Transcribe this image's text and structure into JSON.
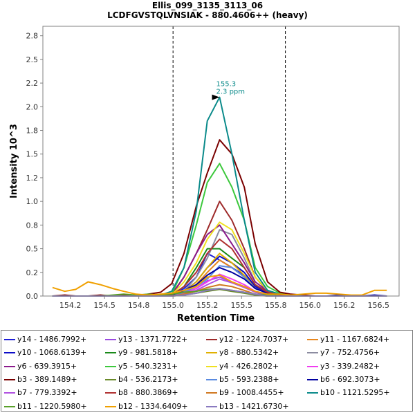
{
  "chart_data": {
    "type": "line",
    "title": "Ellis_099_3135_3113_06",
    "subtitle": "LCDFGVSTQLVNSIAK - 880.4606++ (heavy)",
    "xlabel": "Retention Time",
    "ylabel": "Intensity 10^3",
    "xlim": [
      154.0,
      156.6
    ],
    "ylim": [
      0,
      2.85
    ],
    "x_ticks": [
      "154.2",
      "154.5",
      "154.8",
      "155.0",
      "155.2",
      "155.5",
      "155.8",
      "156.0",
      "156.2",
      "156.5"
    ],
    "x_tick_values": [
      154.2,
      154.45,
      154.7,
      154.95,
      155.2,
      155.45,
      155.7,
      155.95,
      156.2,
      156.45
    ],
    "y_ticks": [
      "0.0",
      "0.2",
      "0.5",
      "0.8",
      "1.0",
      "1.2",
      "1.5",
      "1.8",
      "2.0",
      "2.2",
      "2.5",
      "2.8"
    ],
    "y_tick_values": [
      0.0,
      0.25,
      0.5,
      0.75,
      1.0,
      1.25,
      1.5,
      1.75,
      2.0,
      2.25,
      2.5,
      2.75
    ],
    "boundaries": [
      154.95,
      155.77
    ],
    "peak_annotation": {
      "x": 155.3,
      "y": 2.1,
      "line1": "155.3",
      "line2": "2.3 ppm"
    },
    "x": [
      154.07,
      154.16,
      154.24,
      154.33,
      154.42,
      154.51,
      154.59,
      154.68,
      154.77,
      154.86,
      154.94,
      155.03,
      155.12,
      155.2,
      155.29,
      155.38,
      155.47,
      155.55,
      155.64,
      155.73,
      155.81,
      155.9,
      155.99,
      156.07,
      156.16,
      156.25,
      156.33,
      156.42,
      156.51
    ],
    "series": [
      {
        "name": "y14 - 1486.7992+",
        "color": "#1f1fd6",
        "values": [
          0,
          0,
          0,
          0,
          0,
          0,
          0,
          0,
          0,
          0,
          0.01,
          0.08,
          0.2,
          0.45,
          0.38,
          0.3,
          0.22,
          0.1,
          0.05,
          0.02,
          0.01,
          0,
          0,
          0,
          0,
          0,
          0,
          0,
          0
        ]
      },
      {
        "name": "y13 - 1371.7722+",
        "color": "#9a4ae0",
        "values": [
          0,
          0,
          0,
          0,
          0,
          0,
          0,
          0,
          0,
          0,
          0,
          0.03,
          0.08,
          0.16,
          0.2,
          0.15,
          0.1,
          0.04,
          0.02,
          0.01,
          0,
          0,
          0,
          0,
          0,
          0,
          0,
          0,
          0
        ]
      },
      {
        "name": "y12 - 1224.7037+",
        "color": "#9e2a2a",
        "values": [
          0,
          0,
          0,
          0,
          0,
          0,
          0,
          0,
          0,
          0,
          0.02,
          0.2,
          0.45,
          0.7,
          1.0,
          0.8,
          0.5,
          0.2,
          0.05,
          0.02,
          0,
          0,
          0,
          0,
          0,
          0,
          0,
          0,
          0
        ]
      },
      {
        "name": "y11 - 1167.6824+",
        "color": "#e8871e",
        "values": [
          0,
          0,
          0,
          0,
          0,
          0,
          0,
          0,
          0,
          0,
          0,
          0.04,
          0.12,
          0.25,
          0.38,
          0.3,
          0.2,
          0.08,
          0.03,
          0.01,
          0,
          0,
          0,
          0,
          0,
          0,
          0,
          0,
          0
        ]
      },
      {
        "name": "y10 - 1068.6139+",
        "color": "#0c0cc8",
        "values": [
          0,
          0,
          0,
          0,
          0,
          0,
          0,
          0,
          0,
          0,
          0,
          0.05,
          0.15,
          0.3,
          0.42,
          0.35,
          0.25,
          0.1,
          0.04,
          0.01,
          0,
          0,
          0,
          0,
          0,
          0,
          0,
          0,
          0
        ]
      },
      {
        "name": "y9 - 981.5818+",
        "color": "#1a8a1a",
        "values": [
          0,
          0,
          0,
          0,
          0,
          0,
          0,
          0,
          0,
          0,
          0.01,
          0.1,
          0.3,
          0.5,
          0.5,
          0.4,
          0.3,
          0.12,
          0.04,
          0.01,
          0,
          0,
          0,
          0,
          0,
          0,
          0,
          0,
          0
        ]
      },
      {
        "name": "y8 - 880.5342+",
        "color": "#e0b000",
        "values": [
          0,
          0,
          0,
          0,
          0,
          0,
          0,
          0,
          0,
          0,
          0,
          0.04,
          0.15,
          0.3,
          0.45,
          0.35,
          0.22,
          0.08,
          0.03,
          0,
          0,
          0,
          0,
          0,
          0,
          0,
          0,
          0,
          0
        ]
      },
      {
        "name": "y7 - 752.4756+",
        "color": "#8c8ca0",
        "values": [
          0,
          0,
          0,
          0,
          0,
          0,
          0,
          0,
          0,
          0,
          0,
          0.05,
          0.2,
          0.4,
          0.7,
          0.65,
          0.4,
          0.15,
          0.05,
          0.02,
          0,
          0,
          0,
          0,
          0,
          0,
          0,
          0,
          0
        ]
      },
      {
        "name": "y6 - 639.3915+",
        "color": "#8b1a8b",
        "values": [
          0,
          0,
          0,
          0,
          0,
          0,
          0,
          0,
          0,
          0,
          0.01,
          0.2,
          0.45,
          0.65,
          0.75,
          0.55,
          0.35,
          0.15,
          0.05,
          0.02,
          0,
          0,
          0,
          0,
          0,
          0,
          0,
          0,
          0
        ]
      },
      {
        "name": "y5 - 540.3231+",
        "color": "#3cc83c",
        "values": [
          0,
          0,
          0,
          0,
          0,
          0,
          0,
          0,
          0,
          0,
          0.02,
          0.3,
          0.75,
          1.2,
          1.4,
          1.15,
          0.8,
          0.3,
          0.1,
          0.03,
          0,
          0,
          0,
          0,
          0,
          0,
          0,
          0,
          0
        ]
      },
      {
        "name": "y4 - 426.2802+",
        "color": "#f0e020",
        "values": [
          0,
          0,
          0,
          0,
          0,
          0,
          0,
          0,
          0,
          0,
          0.01,
          0.15,
          0.35,
          0.6,
          0.78,
          0.7,
          0.45,
          0.2,
          0.06,
          0.02,
          0,
          0,
          0,
          0,
          0,
          0,
          0,
          0,
          0
        ]
      },
      {
        "name": "y3 - 339.2482+",
        "color": "#f03cf0",
        "values": [
          0,
          0,
          0,
          0,
          0,
          0,
          0,
          0,
          0,
          0,
          0,
          0.03,
          0.08,
          0.15,
          0.23,
          0.18,
          0.12,
          0.05,
          0.02,
          0,
          0,
          0,
          0,
          0,
          0,
          0,
          0,
          0,
          0
        ]
      },
      {
        "name": "b3 - 389.1489+",
        "color": "#7a0000",
        "values": [
          0,
          0.01,
          0,
          0,
          0.01,
          0,
          0.01,
          0,
          0.02,
          0.04,
          0.13,
          0.45,
          0.95,
          1.3,
          1.65,
          1.5,
          1.15,
          0.55,
          0.15,
          0.04,
          0.02,
          0.01,
          0,
          0,
          0,
          0,
          0,
          0,
          0
        ]
      },
      {
        "name": "b4 - 536.2173+",
        "color": "#6a8a2a",
        "values": [
          0,
          0,
          0,
          0,
          0,
          0,
          0,
          0,
          0,
          0,
          0,
          0.01,
          0.03,
          0.05,
          0.07,
          0.05,
          0.03,
          0.01,
          0,
          0,
          0,
          0,
          0,
          0,
          0,
          0,
          0,
          0,
          0
        ]
      },
      {
        "name": "b5 - 593.2388+",
        "color": "#5a8ae0",
        "values": [
          0,
          0,
          0,
          0,
          0,
          0,
          0,
          0,
          0,
          0,
          0,
          0.04,
          0.1,
          0.18,
          0.32,
          0.3,
          0.2,
          0.08,
          0.03,
          0,
          0,
          0,
          0,
          0,
          0,
          0,
          0,
          0,
          0
        ]
      },
      {
        "name": "b6 - 692.3073+",
        "color": "#0000a0",
        "values": [
          0,
          0,
          0,
          0,
          0,
          0,
          0,
          0,
          0,
          0,
          0.01,
          0.06,
          0.12,
          0.22,
          0.3,
          0.25,
          0.18,
          0.08,
          0.03,
          0.01,
          0,
          0,
          0,
          0,
          0.01,
          0,
          0,
          0.01,
          0
        ]
      },
      {
        "name": "b7 - 779.3392+",
        "color": "#b050e0",
        "values": [
          0,
          0,
          0,
          0,
          0,
          0,
          0,
          0,
          0,
          0,
          0,
          0.02,
          0.06,
          0.12,
          0.18,
          0.14,
          0.09,
          0.04,
          0.01,
          0,
          0,
          0,
          0,
          0,
          0,
          0,
          0,
          0,
          0
        ]
      },
      {
        "name": "b8 - 880.3869+",
        "color": "#b03030",
        "values": [
          0,
          0,
          0,
          0,
          0,
          0,
          0,
          0,
          0,
          0,
          0.01,
          0.1,
          0.25,
          0.45,
          0.6,
          0.5,
          0.3,
          0.12,
          0.04,
          0.01,
          0,
          0,
          0,
          0,
          0,
          0,
          0,
          0,
          0
        ]
      },
      {
        "name": "b9 - 1008.4455+",
        "color": "#d07820",
        "values": [
          0,
          0,
          0,
          0,
          0,
          0,
          0,
          0,
          0,
          0,
          0,
          0.02,
          0.05,
          0.09,
          0.12,
          0.1,
          0.06,
          0.02,
          0.01,
          0,
          0,
          0,
          0,
          0,
          0,
          0,
          0,
          0,
          0
        ]
      },
      {
        "name": "b10 - 1121.5295+",
        "color": "#0a8a8a",
        "values": [
          0,
          0,
          0,
          0,
          0,
          0,
          0,
          0,
          0,
          0.01,
          0.05,
          0.3,
          0.9,
          1.85,
          2.1,
          1.5,
          0.8,
          0.25,
          0.06,
          0.02,
          0.01,
          0,
          0,
          0,
          0,
          0,
          0,
          0,
          0
        ]
      },
      {
        "name": "b11 - 1220.5980+",
        "color": "#5aa02a",
        "values": [
          0,
          0,
          0,
          0,
          0,
          0.01,
          0.02,
          0.01,
          0.02,
          0.01,
          0.02,
          0.04,
          0.05,
          0.07,
          0.08,
          0.06,
          0.04,
          0.02,
          0.01,
          0,
          0,
          0,
          0,
          0,
          0,
          0,
          0,
          0,
          0
        ]
      },
      {
        "name": "b12 - 1334.6409+",
        "color": "#f0a000",
        "values": [
          0.09,
          0.05,
          0.07,
          0.15,
          0.12,
          0.08,
          0.05,
          0.02,
          0.01,
          0.02,
          0.03,
          0.06,
          0.1,
          0.2,
          0.22,
          0.15,
          0.1,
          0.05,
          0.02,
          0.02,
          0.01,
          0.02,
          0.03,
          0.03,
          0.02,
          0.01,
          0.01,
          0.06,
          0.06
        ]
      },
      {
        "name": "b13 - 1421.6730+",
        "color": "#8a7ac0",
        "values": [
          0,
          0,
          0,
          0,
          0,
          0,
          0,
          0,
          0,
          0,
          0,
          0.01,
          0.03,
          0.06,
          0.08,
          0.06,
          0.04,
          0.02,
          0,
          0,
          0,
          0,
          0,
          0,
          0,
          0,
          0,
          0,
          0
        ]
      }
    ]
  }
}
